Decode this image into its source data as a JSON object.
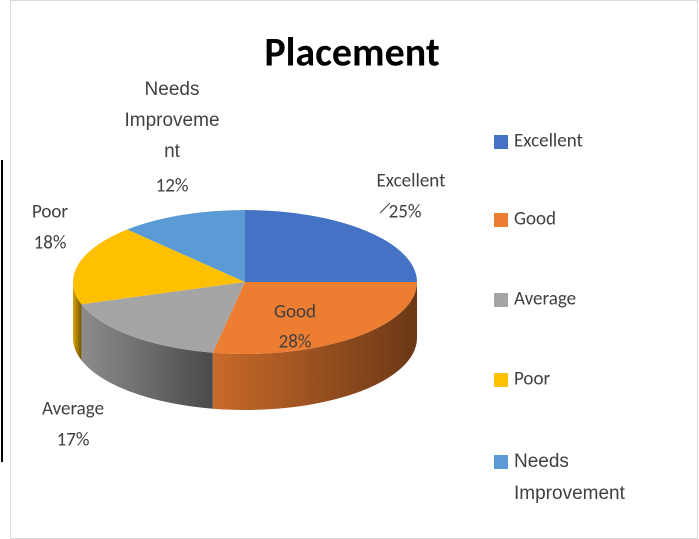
{
  "chart_data": {
    "type": "pie",
    "title": "Placement",
    "categories": [
      "Excellent",
      "Good",
      "Average",
      "Poor",
      "Needs Improvement"
    ],
    "values": [
      25,
      28,
      17,
      18,
      12
    ],
    "value_labels": [
      "25%",
      "28%",
      "17%",
      "18%",
      "12%"
    ],
    "colors": [
      "#4472c4",
      "#ed7d31",
      "#a5a5a5",
      "#ffc000",
      "#5b9bd5"
    ],
    "legend": "right"
  }
}
